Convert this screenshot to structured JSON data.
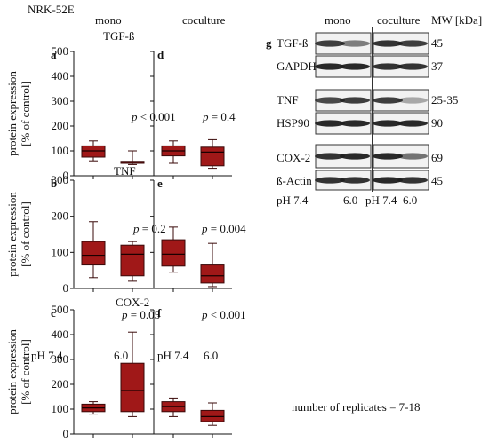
{
  "figure": {
    "cell_line": "NRK-52E",
    "col_mono": "mono",
    "col_coculture": "coculture",
    "ylabel_line1": "protein expression",
    "ylabel_line2": "[% of control]",
    "replicates_note": "number of replicates = 7-18"
  },
  "chart_data": [
    {
      "type": "box",
      "panel": "a",
      "protein": "TGF-ß",
      "condition": "mono",
      "categories": [
        "pH 7.4",
        "6.0"
      ],
      "ylim": [
        0,
        500
      ],
      "yticks": [
        0,
        100,
        200,
        300,
        400,
        500
      ],
      "pvalue_prefix": "p",
      "pvalue_rest": " < 0.001",
      "boxes": [
        {
          "min": 60,
          "q1": 75,
          "median": 100,
          "q3": 120,
          "max": 140
        },
        {
          "min": 45,
          "q1": 50,
          "median": 55,
          "q3": 58,
          "max": 100
        }
      ]
    },
    {
      "type": "box",
      "panel": "d",
      "condition": "coculture",
      "categories": [
        "pH 7.4",
        "6.0"
      ],
      "ylim": [
        0,
        500
      ],
      "yticks": [
        0,
        100,
        200,
        300,
        400,
        500
      ],
      "pvalue_prefix": "p",
      "pvalue_rest": " = 0.4",
      "boxes": [
        {
          "min": 50,
          "q1": 80,
          "median": 100,
          "q3": 120,
          "max": 140
        },
        {
          "min": 30,
          "q1": 40,
          "median": 95,
          "q3": 115,
          "max": 145
        }
      ]
    },
    {
      "type": "box",
      "panel": "b",
      "protein": "TNF",
      "condition": "mono",
      "categories": [
        "pH 7.4",
        "6.0"
      ],
      "ylim": [
        0,
        300
      ],
      "yticks": [
        0,
        100,
        200,
        300
      ],
      "pvalue_prefix": "p",
      "pvalue_rest": " = 0.2",
      "boxes": [
        {
          "min": 30,
          "q1": 65,
          "median": 92,
          "q3": 130,
          "max": 185
        },
        {
          "min": 20,
          "q1": 35,
          "median": 95,
          "q3": 120,
          "max": 130
        }
      ]
    },
    {
      "type": "box",
      "panel": "e",
      "condition": "coculture",
      "categories": [
        "pH 7.4",
        "6.0"
      ],
      "ylim": [
        0,
        300
      ],
      "yticks": [
        0,
        100,
        200,
        300
      ],
      "pvalue_prefix": "p",
      "pvalue_rest": " = 0.004",
      "boxes": [
        {
          "min": 45,
          "q1": 62,
          "median": 95,
          "q3": 135,
          "max": 170
        },
        {
          "min": 5,
          "q1": 15,
          "median": 35,
          "q3": 65,
          "max": 125
        }
      ]
    },
    {
      "type": "box",
      "panel": "c",
      "protein": "COX-2",
      "condition": "mono",
      "categories": [
        "pH 7.4",
        "6.0"
      ],
      "ylim": [
        0,
        500
      ],
      "yticks": [
        0,
        100,
        200,
        300,
        400,
        500
      ],
      "pvalue_prefix": "p",
      "pvalue_rest": " = 0.05",
      "boxes": [
        {
          "min": 80,
          "q1": 90,
          "median": 105,
          "q3": 120,
          "max": 130
        },
        {
          "min": 70,
          "q1": 90,
          "median": 175,
          "q3": 285,
          "max": 410
        }
      ]
    },
    {
      "type": "box",
      "panel": "f",
      "condition": "coculture",
      "categories": [
        "pH 7.4",
        "6.0"
      ],
      "ylim": [
        0,
        500
      ],
      "yticks": [
        0,
        100,
        200,
        300,
        400,
        500
      ],
      "pvalue_prefix": "p",
      "pvalue_rest": " < 0.001",
      "boxes": [
        {
          "min": 70,
          "q1": 90,
          "median": 110,
          "q3": 130,
          "max": 145
        },
        {
          "min": 35,
          "q1": 50,
          "median": 70,
          "q3": 95,
          "max": 125
        }
      ]
    }
  ],
  "blots": {
    "panel_label": "g",
    "mono_label": "mono",
    "coculture_label": "coculture",
    "mw_label": "MW [kDa]",
    "bottom_labels": [
      "pH 7.4",
      "6.0",
      "pH 7.4",
      "6.0"
    ],
    "rows": [
      {
        "name": "TGF-ß",
        "mw": "45"
      },
      {
        "name": "GAPDH",
        "mw": "37"
      },
      {
        "name": "TNF",
        "mw": "25-35"
      },
      {
        "name": "HSP90",
        "mw": "90"
      },
      {
        "name": "COX-2",
        "mw": "69"
      },
      {
        "name": "ß-Actin",
        "mw": "45"
      }
    ]
  },
  "colors": {
    "box_fill": "#a01818",
    "box_stroke": "#3a0a0a",
    "axis": "#111111",
    "band": "#1e1e1e"
  }
}
